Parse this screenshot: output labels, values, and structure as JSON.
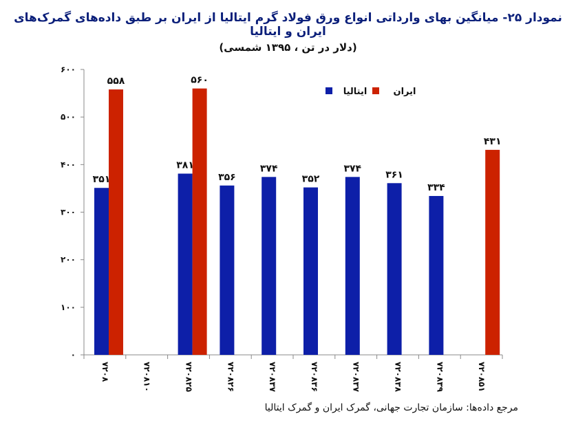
{
  "title": "نمودار ۲۵- میانگین بهای وارداتی انواع ورق فولاد گرم ایتالیا از ایران بر طبق داده‌های گمرک‌های ایران و ایتالیا",
  "subtitle": "(دلار در تن ، ۱۳۹۵ شمسی)",
  "source": "مرجع داده‌ها: سازمان تجارت جهانی، گمرک ایران و گمرک ایتالیا",
  "chart_data": {
    "type": "bar",
    "categories": [
      "۷۲۰۸",
      "۷۲۰۸۱۰",
      "۷۲۰۸۲۵",
      "۷۲۰۸۲۶",
      "۷۲۰۸۳۷",
      "۷۲۰۸۳۶",
      "۷۲۰۸۳۷",
      "۷۲۰۸۳۸",
      "۷۲۰۸۳۹",
      "۷۲۰۸۵۱"
    ],
    "series": [
      {
        "name": "ایتالیا",
        "color": "#0d1fa8",
        "values": [
          351,
          null,
          381,
          356,
          374,
          352,
          374,
          361,
          334,
          null
        ],
        "labels": [
          "۳۵۱",
          "",
          "۳۸۱",
          "۳۵۶",
          "۳۷۴",
          "۳۵۲",
          "۳۷۴",
          "۳۶۱",
          "۳۳۴",
          ""
        ]
      },
      {
        "name": "ایران",
        "color": "#cc2200",
        "values": [
          558,
          null,
          560,
          null,
          null,
          null,
          null,
          null,
          null,
          431
        ],
        "labels": [
          "۵۵۸",
          "",
          "۵۶۰",
          "",
          "",
          "",
          "",
          "",
          "",
          "۴۳۱"
        ]
      }
    ],
    "yticks": [
      "۰",
      "۱۰۰",
      "۲۰۰",
      "۳۰۰",
      "۴۰۰",
      "۵۰۰",
      "۶۰۰"
    ],
    "ylim": [
      0,
      600
    ],
    "grid": false,
    "legend_position": "top-right"
  }
}
